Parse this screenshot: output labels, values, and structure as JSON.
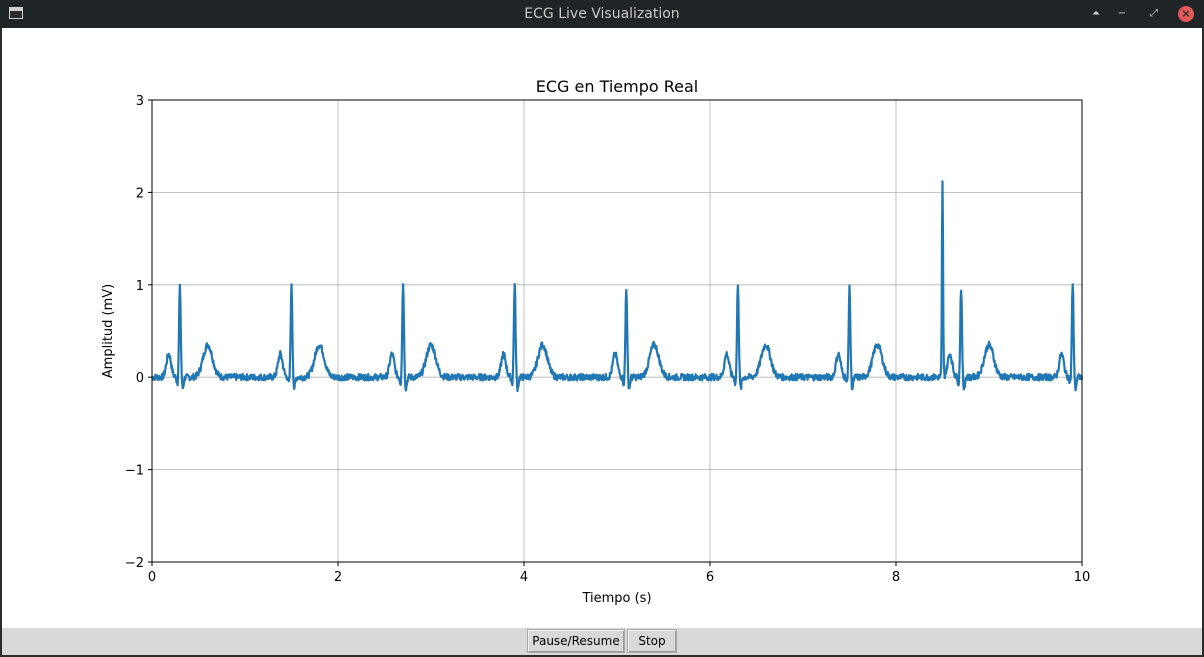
{
  "window": {
    "title": "ECG Live Visualization",
    "controls": {
      "keep_above": "⏶",
      "minimize": "−",
      "restore": "⤢",
      "close": "×"
    }
  },
  "toolbar": {
    "pause_label": "Pause/Resume",
    "stop_label": "Stop"
  },
  "colors": {
    "line": "#1f77b4",
    "grid": "#b0b0b0",
    "close": "#e2595a"
  },
  "chart_data": {
    "type": "line",
    "title": "ECG en Tiempo Real",
    "xlabel": "Tiempo (s)",
    "ylabel": "Amplitud (mV)",
    "xlim": [
      0,
      10
    ],
    "ylim": [
      -2,
      3
    ],
    "xticks": [
      0,
      2,
      4,
      6,
      8,
      10
    ],
    "xtick_labels": [
      "0",
      "2",
      "4",
      "6",
      "8",
      "10"
    ],
    "yticks": [
      -2,
      -1,
      0,
      1,
      2,
      3
    ],
    "ytick_labels": [
      "−2",
      "−1",
      "0",
      "1",
      "2",
      "3"
    ],
    "grid": true,
    "series": [
      {
        "beat_times": [
          0.3,
          1.5,
          2.7,
          3.9,
          5.1,
          6.3,
          7.5,
          8.7,
          9.9
        ],
        "r_peaks": [
          0.97,
          0.98,
          1.02,
          1.0,
          0.97,
          1.02,
          0.96,
          0.97,
          1.0
        ],
        "artifact_spike": {
          "x": 8.5,
          "y": 2.1
        },
        "p_wave_amplitude": 0.25,
        "t_wave_amplitude": 0.35
      }
    ]
  }
}
